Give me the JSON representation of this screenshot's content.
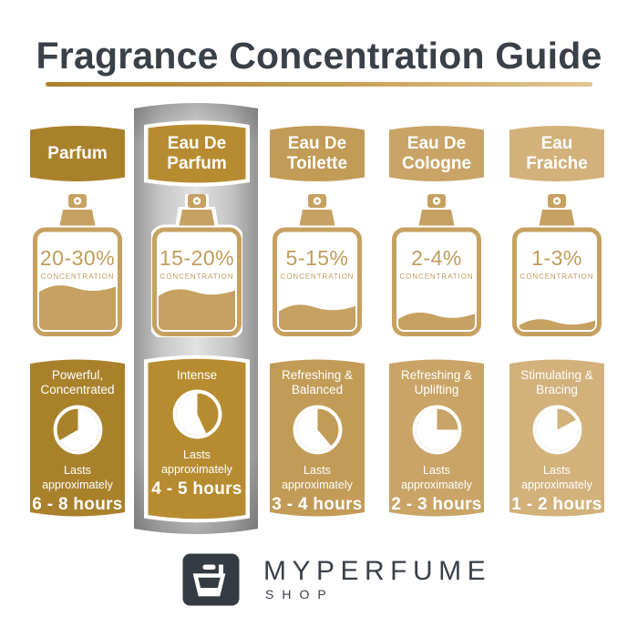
{
  "title": "Fragrance Concentration Guide",
  "colors": {
    "title_text": "#3A4047",
    "rule_left": "#AE7F2D",
    "rule_mid": "#C9A057",
    "rule_right": "#E0C591",
    "bottle_tan": "#C6A161",
    "bottle_text_tan": "#C09C5C",
    "highlight_silver_dark": "#989898",
    "highlight_silver_light": "#E2E2E2",
    "logo_background": "#343B42",
    "logo_text": "#3A4049"
  },
  "columns": [
    {
      "label_lines": [
        "Parfum"
      ],
      "concentration": "20-30%",
      "concentration_label": "CONCENTRATION",
      "strength_lines": [
        "Powerful,",
        "Concentrated"
      ],
      "lasts_lines": [
        "Lasts",
        "approximately"
      ],
      "duration": "6 - 8 hours",
      "color": "#A9812B",
      "bottle_fill": 0.42,
      "clock_gap_degrees": [
        240,
        360
      ],
      "highlighted": false
    },
    {
      "label_lines": [
        "Eau De",
        "Parfum"
      ],
      "concentration": "15-20%",
      "concentration_label": "CONCENTRATION",
      "strength_lines": [
        "Intense"
      ],
      "lasts_lines": [
        "Lasts",
        "approximately"
      ],
      "duration": "4 - 5 hours",
      "color": "#B78C31",
      "bottle_fill": 0.38,
      "clock_gap_degrees": [
        0,
        155
      ],
      "highlighted": true
    },
    {
      "label_lines": [
        "Eau De",
        "Toilette"
      ],
      "concentration": "5-15%",
      "concentration_label": "CONCENTRATION",
      "strength_lines": [
        "Refreshing &",
        "Balanced"
      ],
      "lasts_lines": [
        "Lasts",
        "approximately"
      ],
      "duration": "3 - 4 hours",
      "color": "#C29B56",
      "bottle_fill": 0.22,
      "clock_gap_degrees": [
        0,
        140
      ],
      "highlighted": false
    },
    {
      "label_lines": [
        "Eau De",
        "Cologne"
      ],
      "concentration": "2-4%",
      "concentration_label": "CONCENTRATION",
      "strength_lines": [
        "Refreshing &",
        "Uplifting"
      ],
      "lasts_lines": [
        "Lasts",
        "approximately"
      ],
      "duration": "2 - 3 hours",
      "color": "#C9A466",
      "bottle_fill": 0.14,
      "clock_gap_degrees": [
        0,
        90
      ],
      "highlighted": false
    },
    {
      "label_lines": [
        "Eau",
        "Fraiche"
      ],
      "concentration": "1-3%",
      "concentration_label": "CONCENTRATION",
      "strength_lines": [
        "Stimulating &",
        "Bracing"
      ],
      "lasts_lines": [
        "Lasts",
        "approximately"
      ],
      "duration": "1 - 2 hours",
      "color": "#D2B17B",
      "bottle_fill": 0.07,
      "clock_gap_degrees": [
        0,
        62
      ],
      "highlighted": false
    }
  ],
  "brand": {
    "name": "MYPERFUME",
    "sub": "SHOP"
  }
}
